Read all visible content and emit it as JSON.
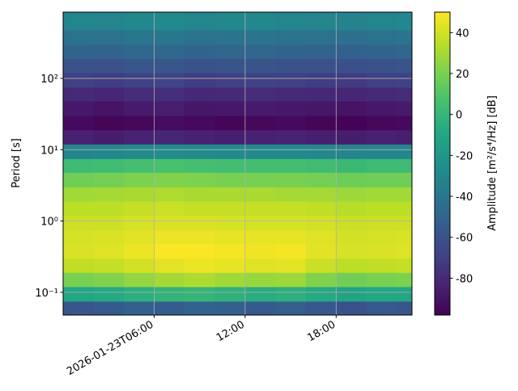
{
  "chart_data": {
    "type": "heatmap",
    "x_label": null,
    "y_label": "Period [s]",
    "colorbar_label": "Amplitude [m²/s⁴/Hz] [dB]",
    "colormap": "viridis",
    "x_edges": [
      "2026-01-23T00:00",
      "2026-01-23T02:00",
      "2026-01-23T04:00",
      "2026-01-23T06:00",
      "2026-01-23T08:00",
      "2026-01-23T10:00",
      "2026-01-23T12:00",
      "2026-01-23T14:00",
      "2026-01-23T16:00",
      "2026-01-23T18:00",
      "2026-01-23T20:00",
      "2026-01-23T22:00",
      "2026-01-23T23:00"
    ],
    "y_edges": [
      0.048,
      0.075,
      0.12,
      0.19,
      0.3,
      0.48,
      0.75,
      1.2,
      1.9,
      3,
      4.8,
      7.5,
      12,
      19,
      30,
      48,
      75,
      120,
      190,
      300,
      480,
      850
    ],
    "values": [
      [
        -58,
        -55,
        -52,
        -54,
        -50,
        -52,
        -55,
        -53,
        -57,
        -60,
        -56,
        -58
      ],
      [
        -10,
        -8,
        -5,
        -2,
        0,
        -3,
        -6,
        -4,
        -8,
        -12,
        -9,
        -10
      ],
      [
        20,
        22,
        26,
        30,
        32,
        29,
        27,
        28,
        22,
        18,
        20,
        21
      ],
      [
        36,
        37,
        40,
        44,
        46,
        45,
        43,
        44,
        38,
        35,
        36,
        37
      ],
      [
        42,
        43,
        46,
        49,
        49,
        48,
        47,
        48,
        44,
        41,
        42,
        43
      ],
      [
        41,
        42,
        44,
        46,
        46,
        45,
        45,
        45,
        43,
        40,
        41,
        42
      ],
      [
        39,
        39,
        41,
        42,
        42,
        41,
        41,
        41,
        40,
        38,
        39,
        39
      ],
      [
        35,
        35,
        37,
        38,
        37,
        37,
        37,
        37,
        36,
        34,
        35,
        35
      ],
      [
        29,
        30,
        31,
        32,
        31,
        31,
        31,
        30,
        30,
        28,
        29,
        29
      ],
      [
        18,
        19,
        21,
        22,
        21,
        20,
        20,
        20,
        19,
        17,
        18,
        18
      ],
      [
        3,
        4,
        6,
        7,
        6,
        5,
        5,
        5,
        4,
        2,
        3,
        3
      ],
      [
        -30,
        -29,
        -27,
        -26,
        -27,
        -28,
        -28,
        -28,
        -29,
        -31,
        -30,
        -30
      ],
      [
        -84,
        -86,
        -83,
        -82,
        -84,
        -85,
        -84,
        -83,
        -85,
        -86,
        -84,
        -85
      ],
      [
        -94,
        -96,
        -95,
        -93,
        -94,
        -96,
        -95,
        -94,
        -96,
        -97,
        -95,
        -94
      ],
      [
        -88,
        -90,
        -87,
        -86,
        -89,
        -88,
        -87,
        -88,
        -89,
        -90,
        -88,
        -87
      ],
      [
        -80,
        -82,
        -79,
        -78,
        -81,
        -80,
        -79,
        -80,
        -81,
        -82,
        -80,
        -79
      ],
      [
        -70,
        -71,
        -69,
        -68,
        -71,
        -70,
        -69,
        -70,
        -71,
        -72,
        -70,
        -69
      ],
      [
        -60,
        -61,
        -58,
        -58,
        -60,
        -59,
        -59,
        -60,
        -61,
        -62,
        -60,
        -59
      ],
      [
        -50,
        -51,
        -48,
        -48,
        -50,
        -49,
        -49,
        -50,
        -51,
        -52,
        -50,
        -49
      ],
      [
        -42,
        -43,
        -40,
        -40,
        -42,
        -41,
        -41,
        -42,
        -43,
        -44,
        -42,
        -41
      ],
      [
        -30,
        -31,
        -29,
        -28,
        -30,
        -29,
        -29,
        -30,
        -31,
        -32,
        -30,
        -29
      ]
    ],
    "xlim": [
      "2026-01-23T00:00",
      "2026-01-23T23:00"
    ],
    "xticks": [
      {
        "value": "2026-01-23T06:00",
        "label": "2026-01-23T06:00"
      },
      {
        "value": "2026-01-23T12:00",
        "label": "12:00"
      },
      {
        "value": "2026-01-23T18:00",
        "label": "18:00"
      }
    ],
    "ylim": [
      0.048,
      850
    ],
    "yscale": "log",
    "yticks": [
      {
        "value": 0.1,
        "label": "10⁻¹"
      },
      {
        "value": 1,
        "label": "10⁰"
      },
      {
        "value": 10,
        "label": "10¹"
      },
      {
        "value": 100,
        "label": "10²"
      }
    ],
    "clim": [
      -98,
      50
    ],
    "cticks": [
      -80,
      -60,
      -40,
      -20,
      0,
      20,
      40
    ],
    "grid": true
  }
}
